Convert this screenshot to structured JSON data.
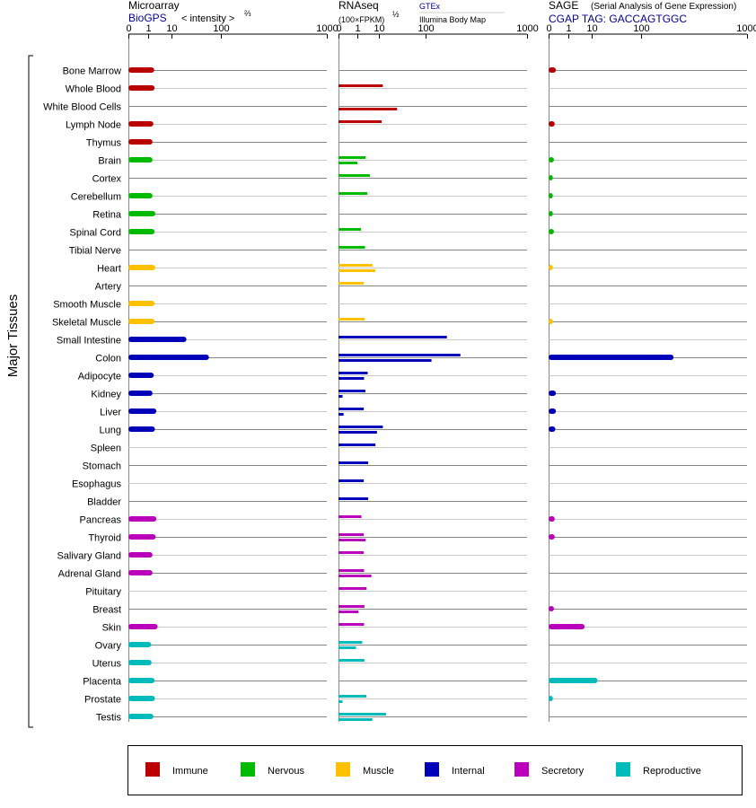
{
  "panels": {
    "microarray": {
      "title": "Microarray",
      "source": "BioGPS",
      "metric": "< intensity >",
      "metric_exp": "⅔"
    },
    "rnaseq": {
      "title": "RNAseq",
      "metric": "(100×FPKM)",
      "metric_exp": "½",
      "source_a": "GTEx",
      "source_b": "Illumina Body Map"
    },
    "sage": {
      "title": "SAGE",
      "subtitle": "(Serial Analysis of Gene Expression)",
      "source": "CGAP TAG: GACCAGTGGC"
    }
  },
  "y_group_label": "Major Tissues",
  "colors": {
    "Immune": "#bb0000",
    "Nervous": "#00bb00",
    "Muscle": "#ffc000",
    "Internal": "#0000bb",
    "Secretory": "#bb00bb",
    "Reproductive": "#00bbbb"
  },
  "legend": [
    {
      "label": "Immune",
      "color": "#bb0000"
    },
    {
      "label": "Nervous",
      "color": "#00bb00"
    },
    {
      "label": "Muscle",
      "color": "#ffc000"
    },
    {
      "label": "Internal",
      "color": "#0000bb"
    },
    {
      "label": "Secretory",
      "color": "#bb00bb"
    },
    {
      "label": "Reproductive",
      "color": "#00bbbb"
    }
  ],
  "chart_data": {
    "type": "bar",
    "orientation": "horizontal",
    "x_scale": "power",
    "x_ticks": [
      "0",
      "1",
      "10",
      "100",
      "1000"
    ],
    "xlim": [
      0,
      1000
    ],
    "grid": true,
    "legend_position": "bottom",
    "categories": [
      "Bone Marrow",
      "Whole Blood",
      "White Blood Cells",
      "Lymph Node",
      "Thymus",
      "Brain",
      "Cortex",
      "Cerebellum",
      "Retina",
      "Spinal Cord",
      "Tibial Nerve",
      "Heart",
      "Artery",
      "Smooth Muscle",
      "Skeletal Muscle",
      "Small Intestine",
      "Colon",
      "Adipocyte",
      "Kidney",
      "Liver",
      "Lung",
      "Spleen",
      "Stomach",
      "Esophagus",
      "Bladder",
      "Pancreas",
      "Thyroid",
      "Salivary Gland",
      "Adrenal Gland",
      "Pituitary",
      "Breast",
      "Skin",
      "Ovary",
      "Uterus",
      "Placenta",
      "Prostate",
      "Testis"
    ],
    "groups": [
      "Immune",
      "Immune",
      "Immune",
      "Immune",
      "Immune",
      "Nervous",
      "Nervous",
      "Nervous",
      "Nervous",
      "Nervous",
      "Nervous",
      "Muscle",
      "Muscle",
      "Muscle",
      "Muscle",
      "Internal",
      "Internal",
      "Internal",
      "Internal",
      "Internal",
      "Internal",
      "Internal",
      "Internal",
      "Internal",
      "Internal",
      "Secretory",
      "Secretory",
      "Secretory",
      "Secretory",
      "Secretory",
      "Secretory",
      "Secretory",
      "Reproductive",
      "Reproductive",
      "Reproductive",
      "Reproductive",
      "Reproductive"
    ],
    "series": [
      {
        "name": "BioGPS",
        "values": [
          2.2,
          2.3,
          null,
          2.0,
          1.8,
          1.8,
          null,
          1.8,
          2.5,
          2.3,
          null,
          2.5,
          null,
          2.3,
          2.3,
          25,
          67,
          2.1,
          1.8,
          2.8,
          2.4,
          null,
          null,
          null,
          null,
          2.8,
          2.6,
          1.8,
          1.8,
          null,
          null,
          3.2,
          1.5,
          1.6,
          2.3,
          2.4,
          2.0
        ]
      },
      {
        "name": "GTEx",
        "values": [
          null,
          13,
          null,
          12,
          null,
          3.0,
          4.6,
          3.6,
          null,
          1.7,
          2.8,
          5.8,
          2.4,
          null,
          2.7,
          190,
          270,
          3.7,
          2.9,
          2.4,
          13,
          7.5,
          3.9,
          2.4,
          3.9,
          1.8,
          2.4,
          2.4,
          2.5,
          3.3,
          2.6,
          2.5,
          2.0,
          2.6,
          null,
          3.2,
          16
        ]
      },
      {
        "name": "Illumina Body Map",
        "values": [
          null,
          null,
          30,
          null,
          null,
          1.0,
          null,
          null,
          null,
          null,
          null,
          7.5,
          null,
          null,
          null,
          null,
          120,
          2.5,
          0.01,
          0.02,
          8.5,
          null,
          null,
          null,
          null,
          null,
          3.0,
          null,
          5.3,
          null,
          1.2,
          null,
          0.8,
          null,
          null,
          0.01,
          5.8
        ]
      },
      {
        "name": "SAGE",
        "values": [
          0.05,
          null,
          null,
          0.03,
          null,
          0.02,
          0.01,
          0.01,
          0.01,
          0.02,
          null,
          0.01,
          null,
          null,
          0.01,
          null,
          250,
          null,
          0.05,
          0.05,
          0.04,
          null,
          null,
          null,
          null,
          0.03,
          0.03,
          null,
          null,
          null,
          0.02,
          6,
          null,
          null,
          15,
          0.01,
          null
        ]
      }
    ]
  }
}
